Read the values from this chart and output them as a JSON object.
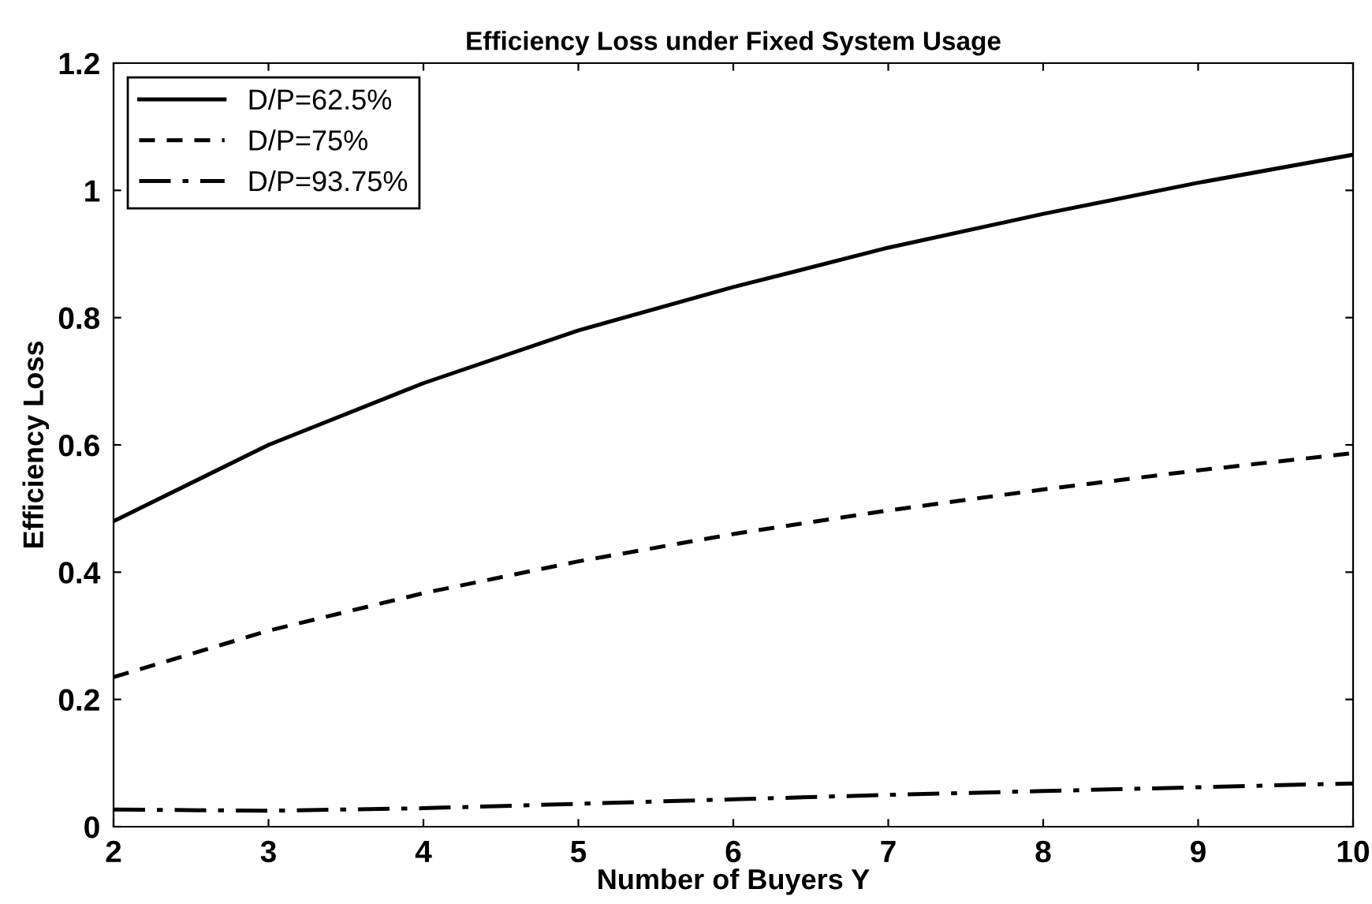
{
  "chart_data": {
    "type": "line",
    "title": "Efficiency Loss under Fixed System Usage",
    "xlabel": "Number of Buyers Y",
    "ylabel": "Efficiency Loss",
    "x": [
      2,
      3,
      4,
      5,
      6,
      7,
      8,
      9,
      10
    ],
    "series": [
      {
        "name": "D/P=62.5%",
        "color": "#000000",
        "line_style": "solid",
        "values": [
          0.48,
          0.6,
          0.697,
          0.78,
          0.848,
          0.91,
          0.963,
          1.012,
          1.056
        ]
      },
      {
        "name": "D/P=75%",
        "color": "#000000",
        "line_style": "dashed",
        "values": [
          0.235,
          0.308,
          0.367,
          0.417,
          0.46,
          0.497,
          0.53,
          0.56,
          0.587
        ]
      },
      {
        "name": "D/P=93.75%",
        "color": "#000000",
        "line_style": "dashdot",
        "values": [
          0.027,
          0.025,
          0.029,
          0.036,
          0.043,
          0.05,
          0.056,
          0.062,
          0.068
        ]
      }
    ],
    "xlim": [
      2,
      10
    ],
    "xticks": [
      2,
      3,
      4,
      5,
      6,
      7,
      8,
      9,
      10
    ],
    "ylim": [
      0,
      1.2
    ],
    "yticks": [
      0,
      0.2,
      0.4,
      0.6,
      0.8,
      1,
      1.2
    ],
    "grid": false,
    "legend": "top left",
    "marker": "none"
  }
}
